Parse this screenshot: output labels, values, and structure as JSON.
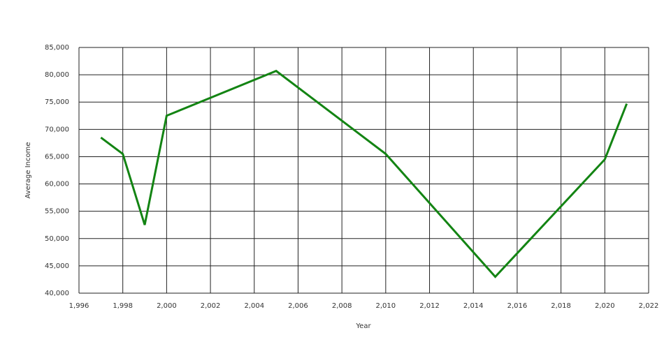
{
  "chart_data": {
    "type": "line",
    "x_label": "Year",
    "y_label": "Average Income",
    "x": [
      1997,
      1998,
      1999,
      2000,
      2005,
      2010,
      2015,
      2020,
      2021
    ],
    "series": [
      {
        "name": "Average Income",
        "color": "#138413",
        "values": [
          68500,
          65500,
          52500,
          72500,
          80700,
          65500,
          43000,
          64500,
          74700
        ]
      }
    ],
    "xlim": [
      1996,
      2022
    ],
    "xticks": [
      {
        "value": 1996,
        "label": "1,996"
      },
      {
        "value": 1998,
        "label": "1,998"
      },
      {
        "value": 2000,
        "label": "2,000"
      },
      {
        "value": 2002,
        "label": "2,002"
      },
      {
        "value": 2004,
        "label": "2,004"
      },
      {
        "value": 2006,
        "label": "2,006"
      },
      {
        "value": 2008,
        "label": "2,008"
      },
      {
        "value": 2010,
        "label": "2,010"
      },
      {
        "value": 2012,
        "label": "2,012"
      },
      {
        "value": 2014,
        "label": "2,014"
      },
      {
        "value": 2016,
        "label": "2,016"
      },
      {
        "value": 2018,
        "label": "2,018"
      },
      {
        "value": 2020,
        "label": "2,020"
      },
      {
        "value": 2022,
        "label": "2,022"
      }
    ],
    "ylim": [
      40000,
      85000
    ],
    "yticks": [
      {
        "value": 40000,
        "label": "40,000"
      },
      {
        "value": 45000,
        "label": "45,000"
      },
      {
        "value": 50000,
        "label": "50,000"
      },
      {
        "value": 55000,
        "label": "55,000"
      },
      {
        "value": 60000,
        "label": "60,000"
      },
      {
        "value": 65000,
        "label": "65,000"
      },
      {
        "value": 70000,
        "label": "70,000"
      },
      {
        "value": 75000,
        "label": "75,000"
      },
      {
        "value": 80000,
        "label": "80,000"
      },
      {
        "value": 85000,
        "label": "85,000"
      }
    ],
    "grid": true
  }
}
